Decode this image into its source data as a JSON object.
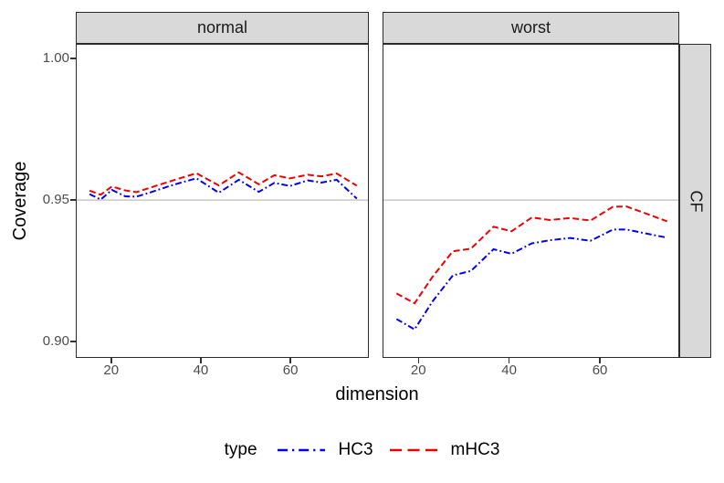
{
  "chart_data": {
    "type": "line",
    "xlabel": "dimension",
    "ylabel": "Coverage",
    "facets": [
      "normal",
      "worst"
    ],
    "facet_row": "CF",
    "x_ticks": [
      20,
      40,
      60
    ],
    "x_tick_labels": [
      "20",
      "40",
      "60"
    ],
    "y_ticks": [
      0.9,
      0.95,
      1.0
    ],
    "y_tick_labels": [
      "0.90",
      "0.95",
      "1.00"
    ],
    "xlim": [
      12.1,
      77.5
    ],
    "ylim": [
      0.8942,
      1.0052
    ],
    "grid": "off",
    "reference_line_y": 0.95,
    "colors": {
      "hc3_blue": "#0000EE",
      "mhc3_red": "#EE0000",
      "reference_line": "#C8C8C8",
      "strip_fill": "#D9D9D9",
      "panel_border": "#2B2B2B",
      "tick_text": "#4D4D4D"
    },
    "legend": {
      "title": "type",
      "position": "bottom",
      "entries": [
        {
          "label": "HC3",
          "color": "#0000EE",
          "linetype": "dotdash"
        },
        {
          "label": "mHC3",
          "color": "#EE0000",
          "linetype": "dashed"
        }
      ]
    },
    "panels": [
      {
        "facet": "normal",
        "series": [
          {
            "name": "HC3",
            "color": "#0000EE",
            "linetype": "dotdash",
            "x": [
              15,
              17.5,
              20,
              23,
              25.5,
              29,
              33,
              36,
              39,
              44,
              48.5,
              53,
              56.5,
              60,
              64,
              67,
              70.5,
              75
            ],
            "y": [
              0.9521,
              0.9502,
              0.9536,
              0.9513,
              0.9512,
              0.9529,
              0.955,
              0.9564,
              0.9577,
              0.9526,
              0.9572,
              0.9529,
              0.9561,
              0.955,
              0.957,
              0.9562,
              0.9572,
              0.9505
            ]
          },
          {
            "name": "mHC3",
            "color": "#EE0000",
            "linetype": "dashed",
            "x": [
              15,
              17.5,
              20,
              23,
              25.5,
              29,
              33,
              36,
              39,
              44,
              48.5,
              53,
              56.5,
              60,
              64,
              67,
              70.5,
              75
            ],
            "y": [
              0.9533,
              0.9519,
              0.9548,
              0.9534,
              0.9528,
              0.9546,
              0.9566,
              0.9581,
              0.9595,
              0.9552,
              0.9598,
              0.9556,
              0.9588,
              0.9577,
              0.959,
              0.9584,
              0.9594,
              0.9551
            ]
          }
        ]
      },
      {
        "facet": "worst",
        "series": [
          {
            "name": "HC3",
            "color": "#0000EE",
            "linetype": "dotdash",
            "x": [
              15,
              19,
              23,
              27.5,
              31.5,
              36.5,
              40.5,
              45,
              49,
              53.5,
              58,
              63,
              66,
              71,
              75
            ],
            "y": [
              0.9077,
              0.904,
              0.914,
              0.9232,
              0.9248,
              0.9325,
              0.9309,
              0.9346,
              0.9357,
              0.9365,
              0.9355,
              0.9395,
              0.9395,
              0.9379,
              0.9366
            ]
          },
          {
            "name": "mHC3",
            "color": "#EE0000",
            "linetype": "dashed",
            "x": [
              15,
              19,
              23,
              27.5,
              31.5,
              36.5,
              40.5,
              45,
              49,
              53.5,
              58,
              63,
              66,
              71,
              75
            ],
            "y": [
              0.9168,
              0.9133,
              0.9228,
              0.9318,
              0.9327,
              0.9405,
              0.9389,
              0.9438,
              0.9429,
              0.9436,
              0.9427,
              0.9476,
              0.9477,
              0.9448,
              0.9424
            ]
          }
        ]
      }
    ]
  }
}
